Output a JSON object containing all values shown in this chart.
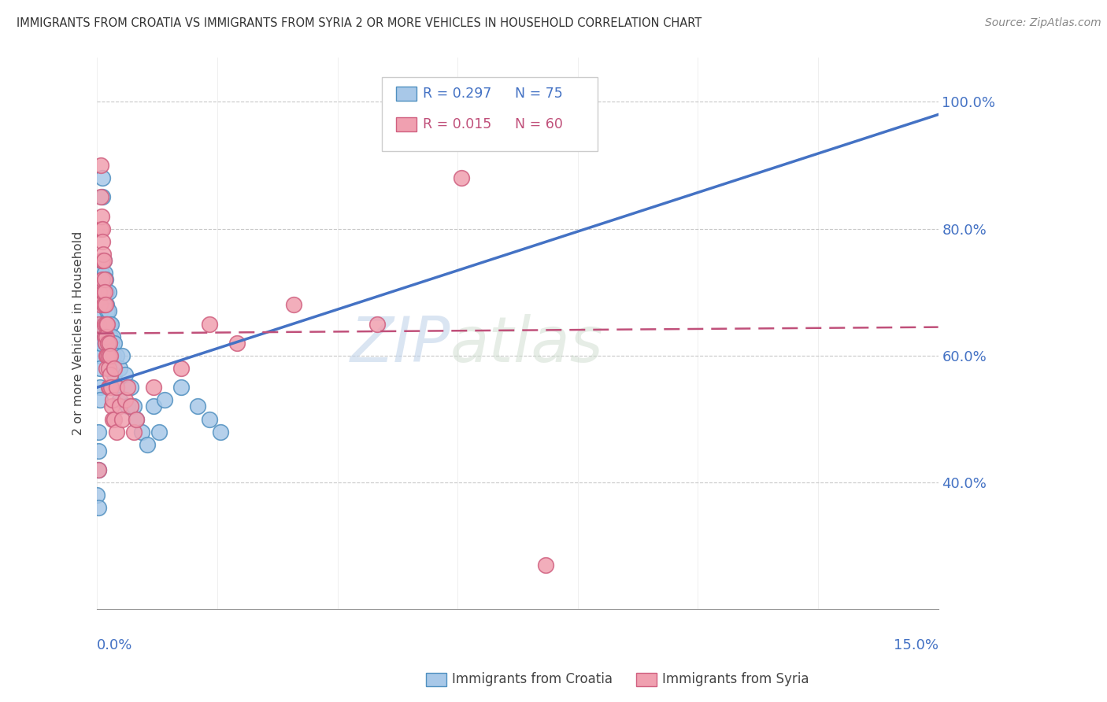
{
  "title": "IMMIGRANTS FROM CROATIA VS IMMIGRANTS FROM SYRIA 2 OR MORE VEHICLES IN HOUSEHOLD CORRELATION CHART",
  "source": "Source: ZipAtlas.com",
  "ylabel": "2 or more Vehicles in Household",
  "xmin": 0.0,
  "xmax": 15.0,
  "ymin": 20.0,
  "ymax": 107.0,
  "watermark_line1": "ZIP",
  "watermark_line2": "atlas",
  "legend_croatia_r": "R = 0.297",
  "legend_croatia_n": "N = 75",
  "legend_syria_r": "R = 0.015",
  "legend_syria_n": "N = 60",
  "croatia_fill": "#a8c8e8",
  "croatia_edge": "#5090c0",
  "syria_fill": "#f0a0b0",
  "syria_edge": "#d06080",
  "croatia_line_color": "#4472c4",
  "syria_line_color": "#c0507a",
  "grid_color": "#c8c8c8",
  "title_color": "#333333",
  "source_color": "#888888",
  "axis_label_color": "#4472c4",
  "ytick_vals": [
    40,
    60,
    80,
    100
  ],
  "ytick_labels": [
    "40.0%",
    "60.0%",
    "80.0%",
    "100.0%"
  ],
  "croatia_line_x": [
    0.0,
    15.0
  ],
  "croatia_line_y": [
    55.0,
    98.0
  ],
  "syria_line_x": [
    0.0,
    15.0
  ],
  "syria_line_y": [
    63.5,
    64.5
  ],
  "croatia_scatter": [
    [
      0.02,
      62.0
    ],
    [
      0.04,
      60.0
    ],
    [
      0.05,
      58.0
    ],
    [
      0.05,
      55.0
    ],
    [
      0.05,
      53.0
    ],
    [
      0.06,
      65.0
    ],
    [
      0.06,
      62.0
    ],
    [
      0.07,
      70.0
    ],
    [
      0.07,
      67.0
    ],
    [
      0.08,
      75.0
    ],
    [
      0.08,
      73.0
    ],
    [
      0.09,
      68.0
    ],
    [
      0.09,
      65.0
    ],
    [
      0.1,
      88.0
    ],
    [
      0.1,
      85.0
    ],
    [
      0.1,
      70.0
    ],
    [
      0.11,
      72.0
    ],
    [
      0.11,
      68.0
    ],
    [
      0.12,
      75.0
    ],
    [
      0.12,
      65.0
    ],
    [
      0.13,
      73.0
    ],
    [
      0.13,
      70.0
    ],
    [
      0.14,
      68.0
    ],
    [
      0.14,
      65.0
    ],
    [
      0.15,
      72.0
    ],
    [
      0.15,
      68.0
    ],
    [
      0.15,
      62.0
    ],
    [
      0.16,
      70.0
    ],
    [
      0.16,
      65.0
    ],
    [
      0.17,
      68.0
    ],
    [
      0.17,
      63.0
    ],
    [
      0.18,
      67.0
    ],
    [
      0.18,
      62.0
    ],
    [
      0.19,
      65.0
    ],
    [
      0.2,
      70.0
    ],
    [
      0.2,
      64.0
    ],
    [
      0.2,
      60.0
    ],
    [
      0.21,
      67.0
    ],
    [
      0.21,
      63.0
    ],
    [
      0.22,
      65.0
    ],
    [
      0.22,
      62.0
    ],
    [
      0.23,
      63.0
    ],
    [
      0.24,
      60.0
    ],
    [
      0.25,
      65.0
    ],
    [
      0.25,
      60.0
    ],
    [
      0.26,
      62.0
    ],
    [
      0.27,
      58.0
    ],
    [
      0.28,
      63.0
    ],
    [
      0.29,
      60.0
    ],
    [
      0.3,
      62.0
    ],
    [
      0.3,
      57.0
    ],
    [
      0.35,
      60.0
    ],
    [
      0.35,
      55.0
    ],
    [
      0.4,
      58.0
    ],
    [
      0.4,
      53.0
    ],
    [
      0.45,
      60.0
    ],
    [
      0.5,
      57.0
    ],
    [
      0.55,
      52.0
    ],
    [
      0.6,
      55.0
    ],
    [
      0.65,
      52.0
    ],
    [
      0.7,
      50.0
    ],
    [
      0.8,
      48.0
    ],
    [
      0.9,
      46.0
    ],
    [
      1.0,
      52.0
    ],
    [
      1.1,
      48.0
    ],
    [
      1.2,
      53.0
    ],
    [
      1.5,
      55.0
    ],
    [
      1.8,
      52.0
    ],
    [
      2.0,
      50.0
    ],
    [
      2.2,
      48.0
    ],
    [
      0.0,
      38.0
    ],
    [
      0.02,
      48.0
    ],
    [
      0.02,
      45.0
    ],
    [
      0.02,
      42.0
    ],
    [
      0.03,
      36.0
    ]
  ],
  "syria_scatter": [
    [
      0.02,
      65.0
    ],
    [
      0.04,
      70.0
    ],
    [
      0.05,
      68.0
    ],
    [
      0.06,
      80.0
    ],
    [
      0.07,
      90.0
    ],
    [
      0.07,
      85.0
    ],
    [
      0.08,
      82.0
    ],
    [
      0.08,
      75.0
    ],
    [
      0.09,
      80.0
    ],
    [
      0.09,
      75.0
    ],
    [
      0.1,
      78.0
    ],
    [
      0.1,
      72.0
    ],
    [
      0.11,
      76.0
    ],
    [
      0.11,
      70.0
    ],
    [
      0.12,
      75.0
    ],
    [
      0.12,
      68.0
    ],
    [
      0.13,
      72.0
    ],
    [
      0.13,
      65.0
    ],
    [
      0.14,
      70.0
    ],
    [
      0.14,
      63.0
    ],
    [
      0.15,
      68.0
    ],
    [
      0.15,
      62.0
    ],
    [
      0.16,
      65.0
    ],
    [
      0.16,
      60.0
    ],
    [
      0.17,
      63.0
    ],
    [
      0.17,
      58.0
    ],
    [
      0.18,
      65.0
    ],
    [
      0.18,
      60.0
    ],
    [
      0.19,
      62.0
    ],
    [
      0.2,
      60.0
    ],
    [
      0.2,
      55.0
    ],
    [
      0.21,
      58.0
    ],
    [
      0.22,
      62.0
    ],
    [
      0.22,
      55.0
    ],
    [
      0.23,
      60.0
    ],
    [
      0.24,
      57.0
    ],
    [
      0.25,
      55.0
    ],
    [
      0.26,
      52.0
    ],
    [
      0.27,
      50.0
    ],
    [
      0.28,
      53.0
    ],
    [
      0.3,
      58.0
    ],
    [
      0.3,
      50.0
    ],
    [
      0.35,
      55.0
    ],
    [
      0.35,
      48.0
    ],
    [
      0.4,
      52.0
    ],
    [
      0.45,
      50.0
    ],
    [
      0.5,
      53.0
    ],
    [
      0.55,
      55.0
    ],
    [
      0.6,
      52.0
    ],
    [
      0.65,
      48.0
    ],
    [
      0.7,
      50.0
    ],
    [
      1.0,
      55.0
    ],
    [
      1.5,
      58.0
    ],
    [
      2.0,
      65.0
    ],
    [
      2.5,
      62.0
    ],
    [
      3.5,
      68.0
    ],
    [
      5.0,
      65.0
    ],
    [
      6.5,
      88.0
    ],
    [
      8.0,
      27.0
    ],
    [
      0.02,
      42.0
    ]
  ]
}
